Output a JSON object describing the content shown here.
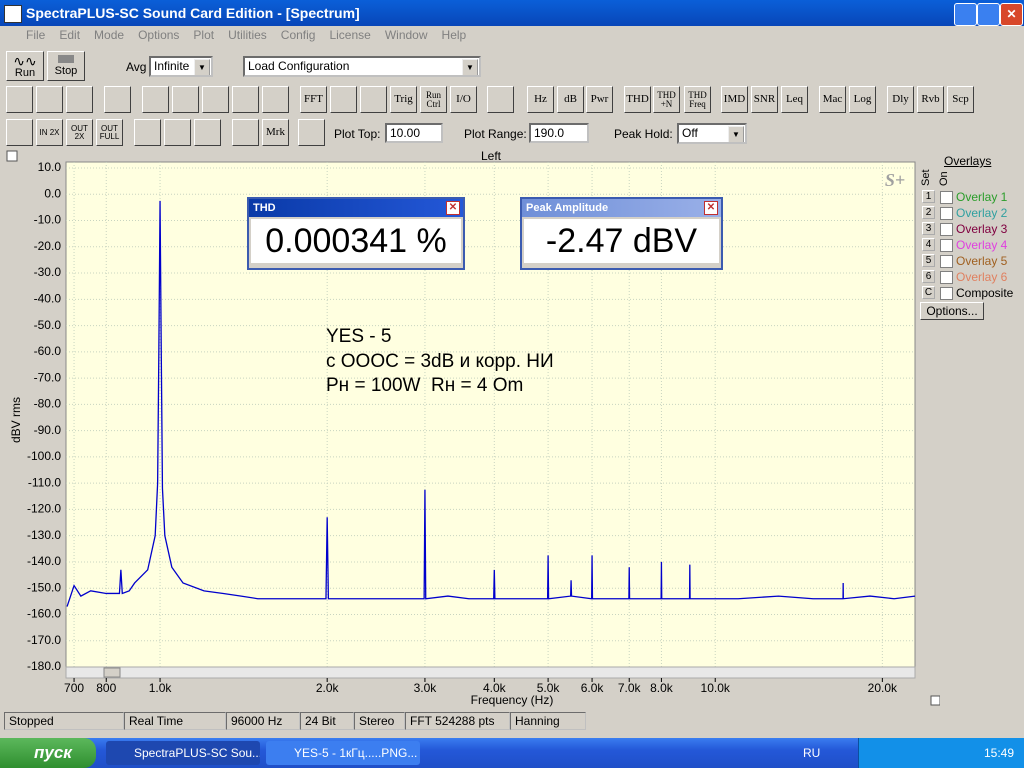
{
  "window": {
    "title": "SpectraPLUS-SC Sound Card Edition - [Spectrum]"
  },
  "menu": [
    "File",
    "Edit",
    "Mode",
    "Options",
    "Plot",
    "Utilities",
    "Config",
    "License",
    "Window",
    "Help"
  ],
  "toolbar": {
    "run": "Run",
    "stop": "Stop",
    "avg_label": "Avg",
    "avg_value": "Infinite",
    "config": "Load Configuration",
    "buttons": [
      "FFT",
      "Trig",
      "Run Ctrl",
      "I/O",
      "Hz",
      "dB",
      "Pwr",
      "THD",
      "THD +N",
      "THD Freq",
      "IMD",
      "SNR",
      "Leq",
      "Mac",
      "Log",
      "Dly",
      "Rvb",
      "Scp"
    ],
    "zoom": [
      "IN 2X",
      "OUT 2X",
      "OUT FULL"
    ],
    "marker": "Mrk",
    "plot_top_label": "Plot Top:",
    "plot_top": "10.00",
    "plot_range_label": "Plot Range:",
    "plot_range": "190.0",
    "peak_hold_label": "Peak Hold:",
    "peak_hold": "Off"
  },
  "chart_data": {
    "type": "line",
    "title": "Left",
    "xlabel": "Frequency (Hz)",
    "ylabel": "dBV rms",
    "watermark": "S+",
    "log_x": true,
    "grid": true,
    "color": "#0000cc",
    "xlim": [
      677,
      22900
    ],
    "ylim": [
      -180,
      10
    ],
    "xticks": [
      700,
      800,
      {
        "value": 1000,
        "label": "1.0k"
      },
      {
        "value": 2000,
        "label": "2.0k"
      },
      {
        "value": 3000,
        "label": "3.0k"
      },
      {
        "value": 4000,
        "label": "4.0k"
      },
      {
        "value": 5000,
        "label": "5.0k"
      },
      {
        "value": 6000,
        "label": "6.0k"
      },
      {
        "value": 7000,
        "label": "7.0k"
      },
      {
        "value": 8000,
        "label": "8.0k"
      },
      {
        "value": 10000,
        "label": "10.0k"
      },
      {
        "value": 20000,
        "label": "20.0k"
      }
    ],
    "yticks": [
      {
        "value": 10,
        "label": "10.0"
      },
      {
        "value": 0,
        "label": "0.0"
      },
      {
        "value": -10,
        "label": "-10.0"
      },
      {
        "value": -20,
        "label": "-20.0"
      },
      {
        "value": -30,
        "label": "-30.0"
      },
      {
        "value": -40,
        "label": "-40.0"
      },
      {
        "value": -50,
        "label": "-50.0"
      },
      {
        "value": -60,
        "label": "-60.0"
      },
      {
        "value": -70,
        "label": "-70.0"
      },
      {
        "value": -80,
        "label": "-80.0"
      },
      {
        "value": -90,
        "label": "-90.0"
      },
      {
        "value": -100,
        "label": "-100.0"
      },
      {
        "value": -110,
        "label": "-110.0"
      },
      {
        "value": -120,
        "label": "-120.0"
      },
      {
        "value": -130,
        "label": "-130.0"
      },
      {
        "value": -140,
        "label": "-140.0"
      },
      {
        "value": -150,
        "label": "-150.0"
      },
      {
        "value": -160,
        "label": "-160.0"
      },
      {
        "value": -170,
        "label": "-170.0"
      },
      {
        "value": -180,
        "label": "-180.0"
      }
    ],
    "x": [
      680,
      700,
      720,
      750,
      800,
      845,
      850,
      855,
      880,
      900,
      950,
      980,
      990,
      995,
      1000,
      1005,
      1010,
      1020,
      1050,
      1100,
      1200,
      1300,
      1400,
      1500,
      1700,
      1990,
      2000,
      2010,
      2200,
      2500,
      2990,
      3000,
      3010,
      3300,
      3600,
      3990,
      4000,
      4010,
      4500,
      4990,
      5000,
      5010,
      5490,
      5500,
      5510,
      5990,
      6000,
      6010,
      6500,
      6990,
      7000,
      7010,
      7500,
      7990,
      8000,
      8010,
      8500,
      8990,
      9000,
      9010,
      9500,
      10000,
      11000,
      13000,
      15000,
      16990,
      17000,
      17010,
      19000,
      21000,
      22900
    ],
    "values": [
      -157,
      -149,
      -153,
      -151,
      -152,
      -152,
      -143,
      -152,
      -151,
      -148,
      -143,
      -130,
      -110,
      -60,
      -2.5,
      -60,
      -112,
      -130,
      -142,
      -148,
      -151,
      -152,
      -153,
      -154,
      -154,
      -154,
      -123,
      -154,
      -154,
      -154,
      -154,
      -112.5,
      -154,
      -153,
      -154,
      -154,
      -143,
      -154,
      -154,
      -154,
      -137.5,
      -154,
      -153,
      -147,
      -153,
      -154,
      -137.5,
      -154,
      -154,
      -154,
      -142,
      -154,
      -154,
      -154,
      -140,
      -154,
      -154,
      -154,
      -141,
      -154,
      -154,
      -154,
      -154,
      -153,
      -154,
      -154,
      -148,
      -154,
      -153,
      -154,
      -153
    ],
    "annotations": [
      "YES - 5",
      "с ОООС = 3dB и корр. НИ",
      "Рн = 100W  Rн = 4 Om"
    ]
  },
  "meters": [
    {
      "title": "THD",
      "value": "0.000341 %"
    },
    {
      "title": "Peak Amplitude",
      "value": "-2.47 dBV"
    }
  ],
  "overlays": {
    "title": "Overlays",
    "set": "Set",
    "on": "On",
    "options": "Options...",
    "items": [
      {
        "key": "1",
        "name": "Overlay 1",
        "color": "#2a9d2a"
      },
      {
        "key": "2",
        "name": "Overlay 2",
        "color": "#30a0a0"
      },
      {
        "key": "3",
        "name": "Overlay 3",
        "color": "#800040"
      },
      {
        "key": "4",
        "name": "Overlay 4",
        "color": "#e040e0"
      },
      {
        "key": "5",
        "name": "Overlay 5",
        "color": "#a06020"
      },
      {
        "key": "6",
        "name": "Overlay 6",
        "color": "#e08060"
      },
      {
        "key": "C",
        "name": "Composite",
        "color": "#000000"
      }
    ]
  },
  "status": [
    "Stopped",
    "Real Time",
    "96000 Hz",
    "24 Bit",
    "Stereo",
    "FFT 524288 pts",
    "Hanning"
  ],
  "taskbar": {
    "start": "пуск",
    "tasks": [
      "SpectraPLUS-SC Sou...",
      "YES-5 - 1кГц.....PNG..."
    ],
    "lang": "RU",
    "clock": "15:49"
  }
}
